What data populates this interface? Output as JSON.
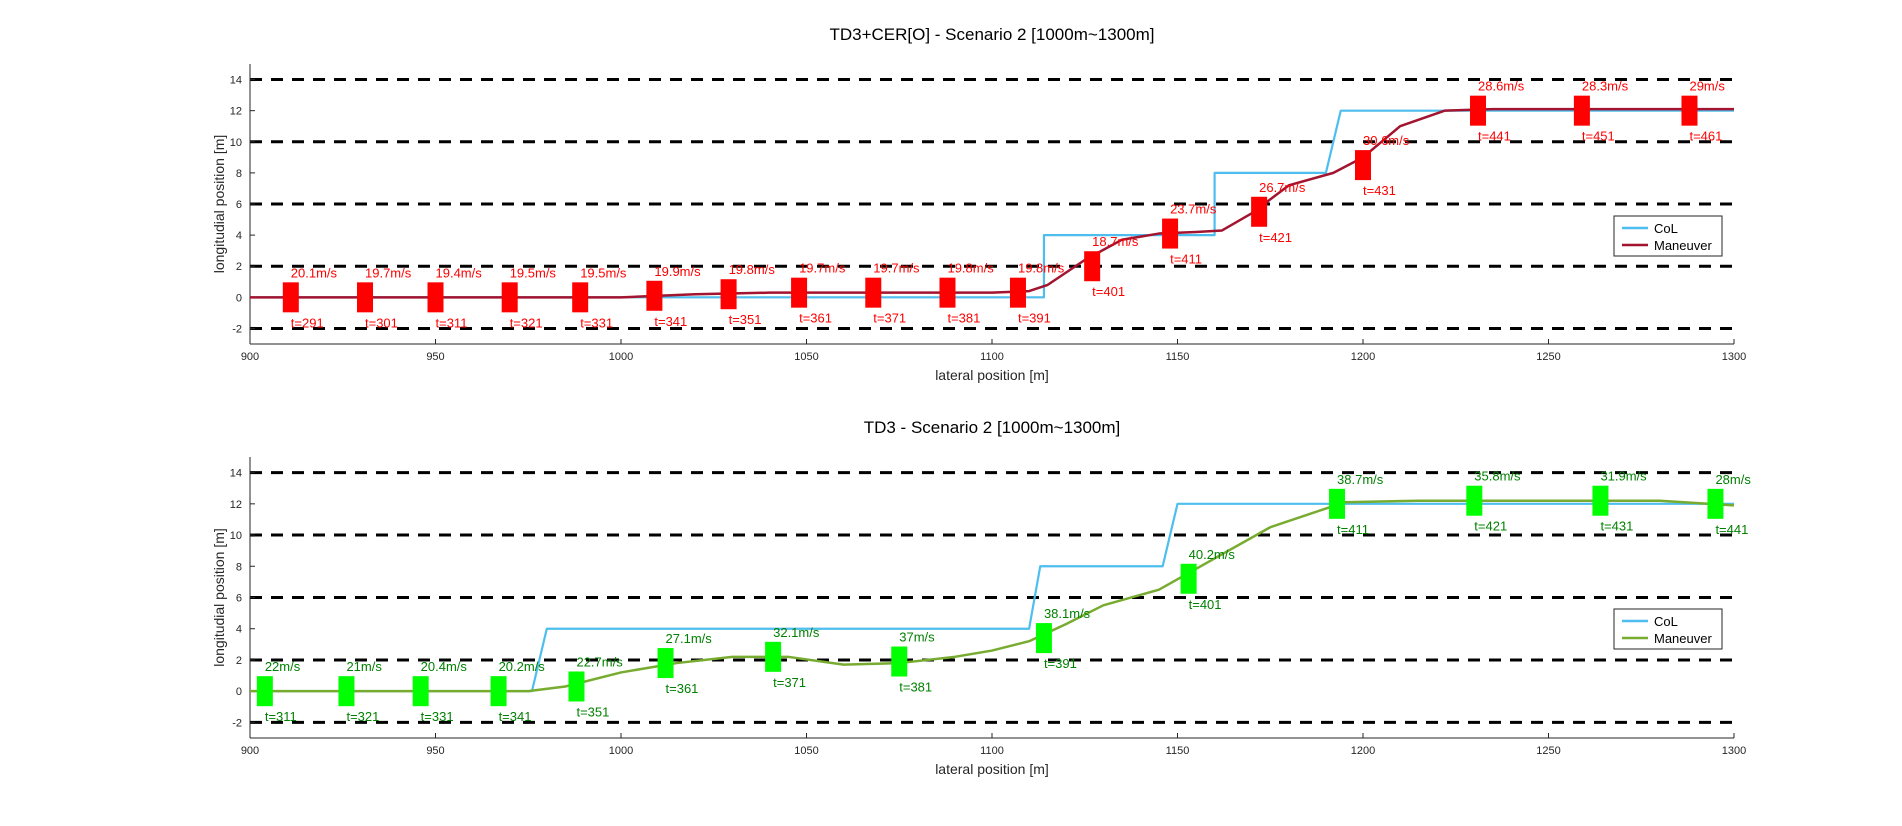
{
  "chart_data": [
    {
      "type": "line",
      "title": "TD3+CER[O] - Scenario 2 [1000m~1300m]",
      "xlabel": "lateral position [m]",
      "ylabel": "longitudial position [m]",
      "xlim": [
        900,
        1300
      ],
      "ylim": [
        -3,
        15
      ],
      "xticks": [
        900,
        950,
        1000,
        1050,
        1100,
        1150,
        1200,
        1250,
        1300
      ],
      "yticks": [
        -2,
        0,
        2,
        4,
        6,
        8,
        10,
        12,
        14
      ],
      "lane_lines": [
        -2,
        2,
        6,
        10,
        14
      ],
      "legend_placement": "right",
      "colors": {
        "col": "#4DBEEE",
        "maneuver": "#A2142F",
        "marker": "#FF0000",
        "annotation": "#FF0000"
      },
      "series": [
        {
          "name": "CoL",
          "x": [
            900,
            1114,
            1114,
            1160,
            1160,
            1190,
            1194,
            1300
          ],
          "y": [
            0,
            0,
            4,
            4,
            8,
            8,
            12,
            12
          ]
        },
        {
          "name": "Maneuver",
          "x": [
            900,
            1000,
            1020,
            1040,
            1100,
            1110,
            1115,
            1125,
            1135,
            1145,
            1155,
            1162,
            1170,
            1180,
            1192,
            1200,
            1210,
            1222,
            1235,
            1260,
            1300
          ],
          "y": [
            0,
            0,
            0.2,
            0.3,
            0.3,
            0.4,
            0.8,
            2.4,
            3.7,
            4.1,
            4.2,
            4.3,
            5.4,
            7.2,
            8.0,
            9.0,
            11.0,
            12.0,
            12.1,
            12.1,
            12.1
          ]
        }
      ],
      "markers": [
        {
          "x": 911,
          "y": 0,
          "speed": "20.1m/s",
          "time": "t=291"
        },
        {
          "x": 931,
          "y": 0,
          "speed": "19.7m/s",
          "time": "t=301"
        },
        {
          "x": 950,
          "y": 0,
          "speed": "19.4m/s",
          "time": "t=311"
        },
        {
          "x": 970,
          "y": 0,
          "speed": "19.5m/s",
          "time": "t=321"
        },
        {
          "x": 989,
          "y": 0,
          "speed": "19.5m/s",
          "time": "t=331"
        },
        {
          "x": 1009,
          "y": 0.1,
          "speed": "19.9m/s",
          "time": "t=341"
        },
        {
          "x": 1029,
          "y": 0.2,
          "speed": "19.8m/s",
          "time": "t=351"
        },
        {
          "x": 1048,
          "y": 0.3,
          "speed": "19.7m/s",
          "time": "t=361"
        },
        {
          "x": 1068,
          "y": 0.3,
          "speed": "19.7m/s",
          "time": "t=371"
        },
        {
          "x": 1088,
          "y": 0.3,
          "speed": "19.8m/s",
          "time": "t=381"
        },
        {
          "x": 1107,
          "y": 0.3,
          "speed": "19.8m/s",
          "time": "t=391"
        },
        {
          "x": 1127,
          "y": 2.0,
          "speed": "18.7m/s",
          "time": "t=401"
        },
        {
          "x": 1148,
          "y": 4.1,
          "speed": "23.7m/s",
          "time": "t=411"
        },
        {
          "x": 1172,
          "y": 5.5,
          "speed": "26.7m/s",
          "time": "t=421"
        },
        {
          "x": 1200,
          "y": 8.5,
          "speed": "30.6m/s",
          "time": "t=431"
        },
        {
          "x": 1231,
          "y": 12.0,
          "speed": "28.6m/s",
          "time": "t=441"
        },
        {
          "x": 1259,
          "y": 12.0,
          "speed": "28.3m/s",
          "time": "t=451"
        },
        {
          "x": 1288,
          "y": 12.0,
          "speed": "29m/s",
          "time": "t=461"
        }
      ]
    },
    {
      "type": "line",
      "title": "TD3 - Scenario 2 [1000m~1300m]",
      "xlabel": "lateral position [m]",
      "ylabel": "longitudial position [m]",
      "xlim": [
        900,
        1300
      ],
      "ylim": [
        -3,
        15
      ],
      "xticks": [
        900,
        950,
        1000,
        1050,
        1100,
        1150,
        1200,
        1250,
        1300
      ],
      "yticks": [
        -2,
        0,
        2,
        4,
        6,
        8,
        10,
        12,
        14
      ],
      "lane_lines": [
        -2,
        2,
        6,
        10,
        14
      ],
      "legend_placement": "right",
      "colors": {
        "col": "#4DBEEE",
        "maneuver": "#77AC30",
        "marker": "#00FF00",
        "annotation": "#008000"
      },
      "series": [
        {
          "name": "CoL",
          "x": [
            900,
            976,
            980,
            1110,
            1113,
            1146,
            1150,
            1300
          ],
          "y": [
            0,
            0,
            4,
            4,
            8,
            8,
            12,
            12
          ]
        },
        {
          "name": "Maneuver",
          "x": [
            900,
            975,
            985,
            1000,
            1015,
            1030,
            1045,
            1060,
            1075,
            1090,
            1100,
            1110,
            1120,
            1130,
            1145,
            1160,
            1175,
            1195,
            1215,
            1250,
            1280,
            1300
          ],
          "y": [
            0,
            0,
            0.3,
            1.2,
            1.8,
            2.2,
            2.2,
            1.7,
            1.8,
            2.2,
            2.6,
            3.2,
            4.3,
            5.5,
            6.5,
            8.5,
            10.5,
            12.1,
            12.2,
            12.2,
            12.2,
            11.9
          ]
        }
      ],
      "markers": [
        {
          "x": 904,
          "y": 0,
          "speed": "22m/s",
          "time": "t=311"
        },
        {
          "x": 926,
          "y": 0,
          "speed": "21m/s",
          "time": "t=321"
        },
        {
          "x": 946,
          "y": 0,
          "speed": "20.4m/s",
          "time": "t=331"
        },
        {
          "x": 967,
          "y": 0,
          "speed": "20.2m/s",
          "time": "t=341"
        },
        {
          "x": 988,
          "y": 0.3,
          "speed": "22.7m/s",
          "time": "t=351"
        },
        {
          "x": 1012,
          "y": 1.8,
          "speed": "27.1m/s",
          "time": "t=361"
        },
        {
          "x": 1041,
          "y": 2.2,
          "speed": "32.1m/s",
          "time": "t=371"
        },
        {
          "x": 1075,
          "y": 1.9,
          "speed": "37m/s",
          "time": "t=381"
        },
        {
          "x": 1114,
          "y": 3.4,
          "speed": "38.1m/s",
          "time": "t=391"
        },
        {
          "x": 1153,
          "y": 7.2,
          "speed": "40.2m/s",
          "time": "t=401"
        },
        {
          "x": 1193,
          "y": 12.0,
          "speed": "38.7m/s",
          "time": "t=411"
        },
        {
          "x": 1230,
          "y": 12.2,
          "speed": "35.8m/s",
          "time": "t=421"
        },
        {
          "x": 1264,
          "y": 12.2,
          "speed": "31.9m/s",
          "time": "t=431"
        },
        {
          "x": 1295,
          "y": 12.0,
          "speed": "28m/s",
          "time": "t=441"
        }
      ]
    }
  ]
}
